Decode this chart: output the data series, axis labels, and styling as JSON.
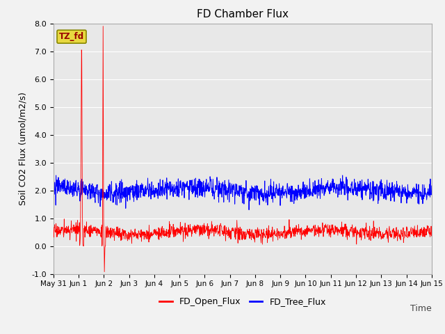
{
  "title": "FD Chamber Flux",
  "xlabel": "Time",
  "ylabel": "Soil CO2 Flux (umol/m2/s)",
  "ylim": [
    -1.0,
    8.0
  ],
  "yticks": [
    -1.0,
    0.0,
    1.0,
    2.0,
    3.0,
    4.0,
    5.0,
    6.0,
    7.0,
    8.0
  ],
  "ytick_labels": [
    "-1.0",
    "0.0",
    "1.0",
    "2.0",
    "3.0",
    "4.0",
    "5.0",
    "6.0",
    "7.0",
    "8.0"
  ],
  "fig_facecolor": "#f2f2f2",
  "axes_facecolor": "#e8e8e8",
  "grid_color": "#ffffff",
  "red_color": "#ff0000",
  "blue_color": "#0000ff",
  "title_fontsize": 11,
  "label_fontsize": 9,
  "tick_fontsize": 8,
  "annotation_text": "TZ_fd",
  "annotation_bg": "#e8d840",
  "annotation_fg": "#990000",
  "legend_labels": [
    "FD_Open_Flux",
    "FD_Tree_Flux"
  ],
  "n_points": 1440,
  "red_base": 0.5,
  "red_noise_std": 0.12,
  "blue_base": 2.0,
  "blue_noise_std": 0.18,
  "spike1_day": 1.12,
  "spike1_val": 7.2,
  "spike2_day_up": 1.97,
  "spike2_val_up": 7.9,
  "spike2_day_dn": 2.02,
  "spike2_val_dn": -0.95,
  "red_small_spike_day": 9.35,
  "red_small_spike_val": 0.95
}
